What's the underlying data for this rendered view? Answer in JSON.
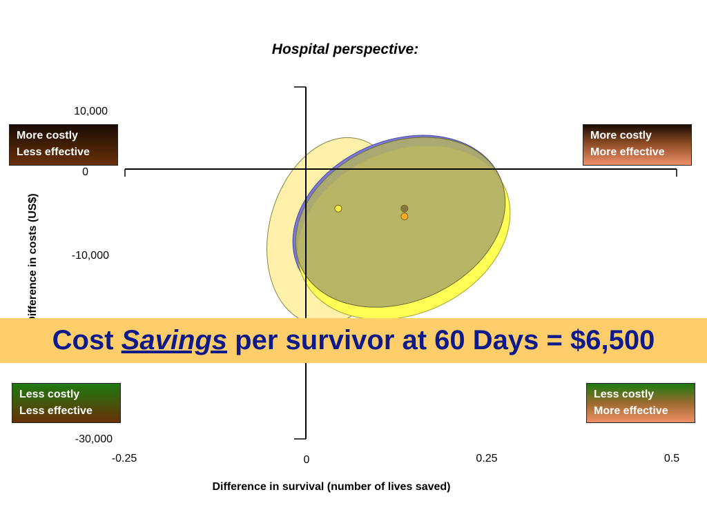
{
  "chart_data": {
    "type": "scatter",
    "title": "Hospital perspective:",
    "xlabel": "Difference in survival  (number of lives saved)",
    "ylabel": "Difference in costs (US$)",
    "xlim": [
      -0.25,
      0.5
    ],
    "ylim": [
      -30000,
      10000
    ],
    "x_ticks": [
      "-0.25",
      "0",
      "0.25",
      "0.5"
    ],
    "y_ticks": [
      "10,000",
      "0",
      "-10,000",
      "-30,000"
    ],
    "points": [
      {
        "x": 0.04,
        "y": -6500,
        "color": "#ffee44"
      },
      {
        "x": 0.13,
        "y": -6500,
        "color": "#807a40"
      },
      {
        "x": 0.13,
        "y": -7800,
        "color": "#ffaa22"
      }
    ],
    "ellipses": [
      {
        "color": "#fff0a0",
        "center_x": 0.05,
        "center_y": -8500
      },
      {
        "color": "#7a78d8",
        "center_x": 0.13,
        "center_y": -6700
      },
      {
        "color": "#ffff55",
        "center_x": 0.14,
        "center_y": -7700
      },
      {
        "color": "#b8b870",
        "center_x": 0.14,
        "center_y": -6500
      }
    ]
  },
  "quadrants": {
    "top_left": {
      "line1": "More costly",
      "line2": "Less effective"
    },
    "top_right": {
      "line1": "More costly",
      "line2": "More effective"
    },
    "bottom_left": {
      "line1": "Less costly",
      "line2": "Less effective"
    },
    "bottom_right": {
      "line1": "Less costly",
      "line2": "More effective"
    }
  },
  "banner": {
    "prefix": "Cost ",
    "emphasis": "Savings",
    "suffix": " per survivor at 60 Days = $6,500",
    "background": "#ffcd6a",
    "text_color": "#0d1a8a"
  }
}
